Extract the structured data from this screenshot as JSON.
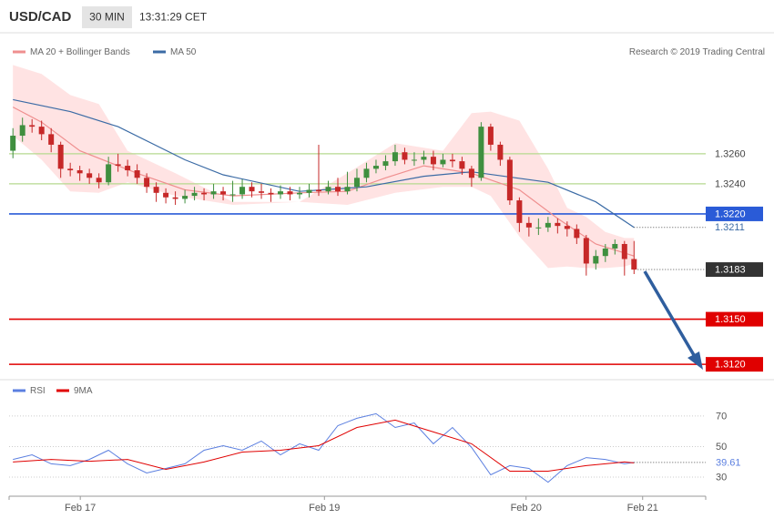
{
  "header": {
    "symbol": "USD/CAD",
    "timeframe": "30 MIN",
    "time": "13:31:29 CET"
  },
  "chart_data": [
    {
      "type": "candlestick",
      "source": "Research © 2019 Trading Central",
      "xlim": [
        -0.4,
        72.5
      ],
      "ylim": [
        1.3111,
        1.3338
      ],
      "up_color": "#3f8f3f",
      "down_color": "#c62828",
      "x": [
        0,
        1,
        2,
        3,
        4,
        5,
        6,
        7,
        8,
        9,
        10,
        11,
        12,
        13,
        14,
        15,
        16,
        17,
        18,
        19,
        20,
        21,
        22,
        23,
        24,
        25,
        26,
        27,
        28,
        29,
        30,
        31,
        32,
        33,
        34,
        35,
        36,
        37,
        38,
        39,
        40,
        41,
        42,
        43,
        44,
        45,
        46,
        47,
        48,
        49,
        50,
        51,
        52,
        53,
        54,
        55,
        56,
        57,
        58,
        59,
        60,
        61,
        62,
        63,
        64,
        65
      ],
      "open": [
        1.3262,
        1.3272,
        1.3279,
        1.3278,
        1.3273,
        1.3266,
        1.325,
        1.3249,
        1.3247,
        1.3244,
        1.3241,
        1.3253,
        1.3252,
        1.3249,
        1.3244,
        1.3238,
        1.3234,
        1.3231,
        1.323,
        1.3232,
        1.3234,
        1.3233,
        1.3235,
        1.3233,
        1.3233,
        1.3238,
        1.3235,
        1.3234,
        1.3233,
        1.3235,
        1.3233,
        1.3234,
        1.3236,
        1.3235,
        1.3238,
        1.3235,
        1.3238,
        1.3244,
        1.325,
        1.3252,
        1.3255,
        1.3261,
        1.3256,
        1.3256,
        1.3258,
        1.3253,
        1.3256,
        1.3255,
        1.325,
        1.3244,
        1.3278,
        1.3266,
        1.3256,
        1.3229,
        1.3214,
        1.3211,
        1.3211,
        1.3214,
        1.3212,
        1.321,
        1.3204,
        1.3187,
        1.3192,
        1.3197,
        1.32,
        1.319
      ],
      "high": [
        1.3277,
        1.3284,
        1.3283,
        1.3282,
        1.3277,
        1.3268,
        1.3254,
        1.3252,
        1.325,
        1.3247,
        1.3258,
        1.326,
        1.3256,
        1.3253,
        1.3247,
        1.3241,
        1.3237,
        1.3235,
        1.3236,
        1.3238,
        1.3237,
        1.324,
        1.3238,
        1.3242,
        1.3243,
        1.3241,
        1.324,
        1.3237,
        1.3239,
        1.3238,
        1.3238,
        1.324,
        1.3266,
        1.3242,
        1.3244,
        1.3248,
        1.325,
        1.3254,
        1.3256,
        1.3259,
        1.3266,
        1.3264,
        1.3261,
        1.3262,
        1.3262,
        1.326,
        1.326,
        1.3258,
        1.3252,
        1.3281,
        1.328,
        1.3268,
        1.3258,
        1.3231,
        1.3218,
        1.3217,
        1.3218,
        1.3217,
        1.3215,
        1.3213,
        1.3206,
        1.3196,
        1.32,
        1.3203,
        1.3202,
        1.3202
      ],
      "low": [
        1.3257,
        1.3268,
        1.3274,
        1.3269,
        1.3261,
        1.3244,
        1.3245,
        1.3242,
        1.324,
        1.3237,
        1.3239,
        1.3248,
        1.3245,
        1.324,
        1.3234,
        1.3228,
        1.3227,
        1.3226,
        1.3227,
        1.3229,
        1.3229,
        1.323,
        1.3229,
        1.3228,
        1.323,
        1.3231,
        1.323,
        1.3228,
        1.323,
        1.3229,
        1.323,
        1.3231,
        1.3232,
        1.3233,
        1.3232,
        1.3233,
        1.3235,
        1.3241,
        1.3247,
        1.3249,
        1.3252,
        1.3253,
        1.3252,
        1.3253,
        1.3249,
        1.3251,
        1.3251,
        1.3246,
        1.3238,
        1.3242,
        1.3262,
        1.3252,
        1.3226,
        1.3208,
        1.3205,
        1.3206,
        1.3208,
        1.3207,
        1.3205,
        1.32,
        1.3179,
        1.3183,
        1.3188,
        1.3193,
        1.3179,
        1.318
      ],
      "close": [
        1.3272,
        1.3279,
        1.3278,
        1.3273,
        1.3266,
        1.325,
        1.3249,
        1.3247,
        1.3244,
        1.3241,
        1.3253,
        1.3252,
        1.3249,
        1.3244,
        1.3238,
        1.3234,
        1.3231,
        1.323,
        1.3232,
        1.3234,
        1.3233,
        1.3235,
        1.3233,
        1.3233,
        1.3238,
        1.3235,
        1.3234,
        1.3233,
        1.3235,
        1.3233,
        1.3234,
        1.3236,
        1.3235,
        1.3238,
        1.3235,
        1.3238,
        1.3244,
        1.325,
        1.3252,
        1.3255,
        1.3261,
        1.3256,
        1.3256,
        1.3258,
        1.3253,
        1.3256,
        1.3255,
        1.325,
        1.3244,
        1.3278,
        1.3266,
        1.3256,
        1.3229,
        1.3214,
        1.3211,
        1.3211,
        1.3214,
        1.3212,
        1.321,
        1.3204,
        1.3187,
        1.3192,
        1.3197,
        1.32,
        1.319,
        1.3183
      ],
      "bands": {
        "color": "#ffd9d9",
        "x": [
          0,
          3,
          6,
          9,
          12,
          17,
          23,
          30,
          35,
          40,
          45,
          48,
          50,
          53,
          56,
          58,
          60,
          62,
          64,
          65
        ],
        "upper": [
          1.3319,
          1.3313,
          1.3299,
          1.3293,
          1.3262,
          1.3247,
          1.3228,
          1.3228,
          1.3247,
          1.3267,
          1.3262,
          1.3287,
          1.3288,
          1.3282,
          1.325,
          1.3224,
          1.3218,
          1.3208,
          1.3204,
          1.3204
        ],
        "lower": [
          1.3272,
          1.3256,
          1.3235,
          1.3234,
          1.3241,
          1.3232,
          1.3226,
          1.3228,
          1.3226,
          1.3234,
          1.3238,
          1.3238,
          1.3232,
          1.3205,
          1.3184,
          1.3185,
          1.3184,
          1.3184,
          1.3185,
          1.3187
        ]
      },
      "series": [
        {
          "name": "MA 20 + Bollinger Bands",
          "color": "#ef8f8f",
          "x": [
            0,
            3,
            7,
            13,
            18,
            23,
            30,
            35,
            39,
            43,
            48,
            53,
            57,
            61,
            65
          ],
          "values": [
            1.3291,
            1.3281,
            1.3262,
            1.3247,
            1.3236,
            1.3232,
            1.3234,
            1.3235,
            1.3244,
            1.3252,
            1.3247,
            1.3236,
            1.3217,
            1.32,
            1.3192
          ]
        },
        {
          "name": "MA 50",
          "color": "#3b6ba5",
          "x": [
            0,
            6,
            11,
            18,
            22,
            30,
            37,
            43,
            48,
            56,
            61,
            65
          ],
          "values": [
            1.3296,
            1.3288,
            1.3278,
            1.3256,
            1.3246,
            1.3235,
            1.3238,
            1.3245,
            1.3248,
            1.3241,
            1.3228,
            1.3211
          ]
        }
      ],
      "levels": [
        {
          "value": 1.326,
          "label": "1.3260",
          "color": "#b5d98f",
          "boxed": false
        },
        {
          "value": 1.324,
          "label": "1.3240",
          "color": "#b5d98f",
          "boxed": false
        },
        {
          "value": 1.322,
          "label": "1.3220",
          "color": "#2a5bd7",
          "boxed": true
        },
        {
          "value": 1.315,
          "label": "1.3150",
          "color": "#e00000",
          "boxed": true
        },
        {
          "value": 1.312,
          "label": "1.3120",
          "color": "#e00000",
          "boxed": true
        }
      ]
    },
    {
      "type": "line",
      "xlim": [
        -0.4,
        72.5
      ],
      "ylim": [
        17.5,
        92
      ],
      "yticks": [
        70,
        50,
        30
      ],
      "xticks": [
        {
          "value": 7.05,
          "label": "Feb 17"
        },
        {
          "value": 32.6,
          "label": "Feb 19"
        },
        {
          "value": 53.7,
          "label": "Feb 20"
        },
        {
          "value": 65.9,
          "label": "Feb 21"
        }
      ],
      "series": [
        {
          "name": "RSI",
          "color": "#5b7fe0",
          "x": [
            0,
            2,
            4,
            6,
            8,
            10,
            12,
            14,
            16,
            18,
            20,
            22,
            24,
            26,
            28,
            30,
            32,
            34,
            36,
            38,
            40,
            42,
            44,
            46,
            48,
            50,
            52,
            54,
            56,
            58,
            60,
            62,
            64,
            65
          ],
          "values": [
            41.6,
            44.6,
            38.7,
            37.5,
            41.6,
            47.6,
            38.7,
            32.7,
            35.7,
            38.7,
            47.6,
            50.6,
            47.6,
            53.6,
            44.6,
            51.8,
            47.6,
            63.7,
            68.5,
            71.5,
            62.5,
            65.5,
            51.8,
            62.5,
            49.4,
            31.5,
            37.5,
            35.7,
            26.7,
            37.5,
            42.8,
            41.6,
            38.7,
            39.61
          ]
        },
        {
          "name": "9MA",
          "color": "#e00000",
          "x": [
            0,
            4,
            8,
            12,
            16,
            20,
            24,
            28,
            32,
            36,
            40,
            44,
            48,
            52,
            56,
            60,
            64,
            65
          ],
          "values": [
            39.9,
            41.6,
            40.4,
            41.6,
            35.1,
            39.9,
            46.4,
            47.6,
            50.6,
            62.5,
            67.3,
            59.6,
            51.8,
            33.9,
            33.9,
            37.5,
            39.9,
            39.3
          ]
        }
      ]
    }
  ]
}
